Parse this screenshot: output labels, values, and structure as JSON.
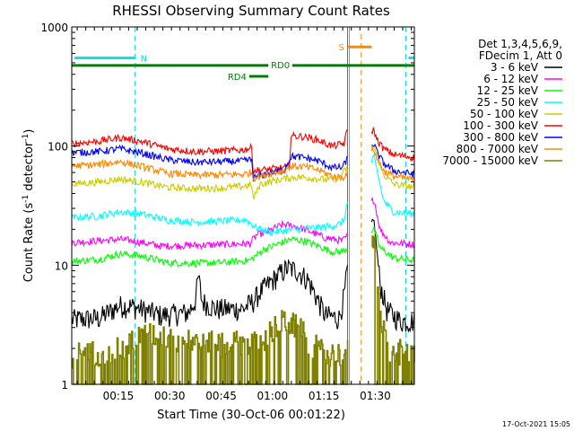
{
  "chart_data": {
    "type": "line",
    "title": "RHESSI Observing Summary Count Rates",
    "xlabel": "Start Time (30-Oct-06 00:01:22)",
    "ylabel": "Count Rate (s",
    "ylabel_sup": "-1",
    "ylabel_tail": " detector",
    "ylabel_close": ")",
    "yscale": "log",
    "ylim": [
      1,
      1000
    ],
    "xlim_minutes": [
      0,
      100
    ],
    "x_ticks": [
      {
        "label": "00:15",
        "minutes": 13.6
      },
      {
        "label": "00:30",
        "minutes": 28.6
      },
      {
        "label": "00:45",
        "minutes": 43.6
      },
      {
        "label": "01:00",
        "minutes": 58.6
      },
      {
        "label": "01:15",
        "minutes": 73.6
      },
      {
        "label": "01:30",
        "minutes": 88.6
      }
    ],
    "y_ticks": [
      {
        "label": "1",
        "value": 1
      },
      {
        "label": "10",
        "value": 10
      },
      {
        "label": "100",
        "value": 100
      },
      {
        "label": "1000",
        "value": 1000
      }
    ],
    "legend_header": [
      "Det 1,3,4,5,6,9,",
      "FDecim 1, Att 0"
    ],
    "legend_position": "right",
    "footer_date": "17-Oct-2021 15:05",
    "annotations": {
      "night_label": "N",
      "saa_label": "S",
      "rd0_label": "RD0",
      "rd4_label": "RD4"
    },
    "night_intervals": [
      [
        0,
        18.5
      ],
      [
        97.5,
        100
      ]
    ],
    "saa_interval": [
      80.5,
      87.5
    ],
    "rd0_intervals": [
      [
        0,
        57.4
      ],
      [
        64.4,
        100
      ]
    ],
    "rd4_interval": [
      51.8,
      57.4
    ],
    "data_gap": [
      80.5,
      87.5
    ],
    "series": [
      {
        "name": "3 - 6 keV",
        "color": "#000000",
        "points": [
          [
            0,
            3.5
          ],
          [
            8,
            3.6
          ],
          [
            14,
            4.6
          ],
          [
            18,
            4.5
          ],
          [
            26,
            3.8
          ],
          [
            34,
            4.0
          ],
          [
            36,
            5.0
          ],
          [
            37,
            8.0
          ],
          [
            38,
            5.0
          ],
          [
            42,
            4.3
          ],
          [
            50,
            4.3
          ],
          [
            53,
            5.0
          ],
          [
            55,
            6.0
          ],
          [
            58,
            7.2
          ],
          [
            61,
            8.6
          ],
          [
            63,
            9.5
          ],
          [
            66,
            9.0
          ],
          [
            69,
            7.5
          ],
          [
            72,
            5.0
          ],
          [
            74,
            3.8
          ],
          [
            78,
            3.6
          ],
          [
            79.5,
            5.5
          ],
          [
            80.4,
            9.0
          ],
          [
            88.2,
            24
          ],
          [
            90,
            7
          ],
          [
            92,
            4.2
          ],
          [
            96,
            3.4
          ],
          [
            100,
            3.4
          ]
        ]
      },
      {
        "name": "6 - 12 keV",
        "color": "#ff00ff",
        "points": [
          [
            0,
            15.5
          ],
          [
            14,
            16.5
          ],
          [
            18,
            16.0
          ],
          [
            26,
            14.5
          ],
          [
            40,
            14.8
          ],
          [
            52,
            15.2
          ],
          [
            54,
            18
          ],
          [
            57,
            19
          ],
          [
            60,
            21
          ],
          [
            62,
            22
          ],
          [
            66,
            21
          ],
          [
            70,
            19
          ],
          [
            74,
            17
          ],
          [
            79,
            16
          ],
          [
            80.4,
            17.5
          ],
          [
            88.2,
            36
          ],
          [
            90,
            20
          ],
          [
            93,
            15.5
          ],
          [
            100,
            15
          ]
        ]
      },
      {
        "name": "12 - 25 keV",
        "color": "#00ff00",
        "points": [
          [
            0,
            10.8
          ],
          [
            8,
            11.2
          ],
          [
            14,
            12.5
          ],
          [
            20,
            12.0
          ],
          [
            28,
            10.5
          ],
          [
            36,
            10.4
          ],
          [
            44,
            10.5
          ],
          [
            52,
            11
          ],
          [
            56,
            13.5
          ],
          [
            60,
            15
          ],
          [
            64,
            16.5
          ],
          [
            68,
            16
          ],
          [
            72,
            14.5
          ],
          [
            76,
            13
          ],
          [
            79,
            13
          ],
          [
            80.4,
            14
          ],
          [
            88.2,
            20
          ],
          [
            90,
            14
          ],
          [
            94,
            11.5
          ],
          [
            100,
            11
          ]
        ]
      },
      {
        "name": "25 - 50 keV",
        "color": "#00ffff",
        "points": [
          [
            0,
            25
          ],
          [
            8,
            26
          ],
          [
            14,
            28
          ],
          [
            20,
            27
          ],
          [
            28,
            24
          ],
          [
            36,
            23
          ],
          [
            44,
            23.5
          ],
          [
            51,
            24
          ],
          [
            54,
            20.5
          ],
          [
            58,
            19
          ],
          [
            62,
            19.5
          ],
          [
            66,
            20
          ],
          [
            70,
            20.5
          ],
          [
            74,
            21
          ],
          [
            78,
            22
          ],
          [
            79.5,
            24
          ],
          [
            80.4,
            33
          ],
          [
            88.2,
            80
          ],
          [
            89.5,
            55
          ],
          [
            91,
            35
          ],
          [
            94,
            28
          ],
          [
            100,
            27
          ]
        ]
      },
      {
        "name": "50 - 100 keV",
        "color": "#cccc00",
        "points": [
          [
            0,
            48
          ],
          [
            8,
            50
          ],
          [
            14,
            53
          ],
          [
            20,
            50
          ],
          [
            28,
            45
          ],
          [
            36,
            44
          ],
          [
            44,
            44.5
          ],
          [
            50,
            46
          ],
          [
            52.5,
            47
          ],
          [
            53,
            36
          ],
          [
            55,
            48
          ],
          [
            59,
            51
          ],
          [
            63,
            54
          ],
          [
            66,
            55
          ],
          [
            70,
            54
          ],
          [
            75,
            52
          ],
          [
            78,
            54
          ],
          [
            80.4,
            66
          ],
          [
            88.2,
            100
          ],
          [
            89,
            85
          ],
          [
            91,
            58
          ],
          [
            94,
            48
          ],
          [
            100,
            45
          ]
        ]
      },
      {
        "name": "100 - 300 keV",
        "color": "#ff0000",
        "points": [
          [
            0,
            105
          ],
          [
            8,
            110
          ],
          [
            14,
            118
          ],
          [
            20,
            110
          ],
          [
            28,
            95
          ],
          [
            36,
            90
          ],
          [
            44,
            91
          ],
          [
            50,
            93
          ],
          [
            52.5,
            97
          ],
          [
            53,
            62
          ],
          [
            58,
            64
          ],
          [
            62,
            66
          ],
          [
            63.5,
            68
          ],
          [
            64,
            122
          ],
          [
            68,
            120
          ],
          [
            72,
            112
          ],
          [
            76,
            100
          ],
          [
            79.5,
            105
          ],
          [
            80.4,
            136
          ],
          [
            88.2,
            135
          ],
          [
            89,
            115
          ],
          [
            91,
            95
          ],
          [
            94,
            85
          ],
          [
            100,
            80
          ]
        ]
      },
      {
        "name": "300 - 800 keV",
        "color": "#0000ff",
        "points": [
          [
            0,
            88
          ],
          [
            8,
            90
          ],
          [
            14,
            95
          ],
          [
            20,
            88
          ],
          [
            28,
            77
          ],
          [
            36,
            73
          ],
          [
            44,
            74
          ],
          [
            50,
            75
          ],
          [
            52.5,
            77
          ],
          [
            53,
            54
          ],
          [
            58,
            60
          ],
          [
            62,
            63
          ],
          [
            64,
            82
          ],
          [
            68,
            80
          ],
          [
            72,
            75
          ],
          [
            76,
            66
          ],
          [
            79,
            66
          ],
          [
            80.4,
            78
          ],
          [
            88.2,
            105
          ],
          [
            89,
            90
          ],
          [
            91,
            72
          ],
          [
            94,
            62
          ],
          [
            100,
            58
          ]
        ]
      },
      {
        "name": "800 - 7000 keV",
        "color": "#ff8800",
        "points": [
          [
            0,
            68
          ],
          [
            8,
            70
          ],
          [
            14,
            74
          ],
          [
            20,
            68
          ],
          [
            28,
            59
          ],
          [
            36,
            57
          ],
          [
            44,
            57.5
          ],
          [
            50,
            58
          ],
          [
            52.5,
            60
          ],
          [
            53,
            54
          ],
          [
            58,
            59
          ],
          [
            62,
            62
          ],
          [
            64,
            68
          ],
          [
            68,
            67
          ],
          [
            72,
            63
          ],
          [
            76,
            56
          ],
          [
            79,
            54
          ],
          [
            80.4,
            60
          ],
          [
            88.2,
            95
          ],
          [
            89,
            80
          ],
          [
            91,
            62
          ],
          [
            94,
            56
          ],
          [
            100,
            52
          ]
        ]
      },
      {
        "name": "7000 - 15000 keV",
        "color": "#808000",
        "noisy": true,
        "points": [
          [
            0,
            1.8
          ],
          [
            16,
            2.0
          ],
          [
            18,
            2.6
          ],
          [
            26,
            2.6
          ],
          [
            34,
            2.3
          ],
          [
            44,
            2.2
          ],
          [
            50,
            2.3
          ],
          [
            54,
            2.2
          ],
          [
            58,
            2.8
          ],
          [
            62,
            3.5
          ],
          [
            66,
            3.0
          ],
          [
            70,
            2.2
          ],
          [
            74,
            1.8
          ],
          [
            78,
            1.8
          ],
          [
            80.4,
            2.2
          ],
          [
            88.2,
            16
          ],
          [
            90,
            4
          ],
          [
            92,
            2.0
          ],
          [
            100,
            1.8
          ]
        ]
      }
    ]
  }
}
